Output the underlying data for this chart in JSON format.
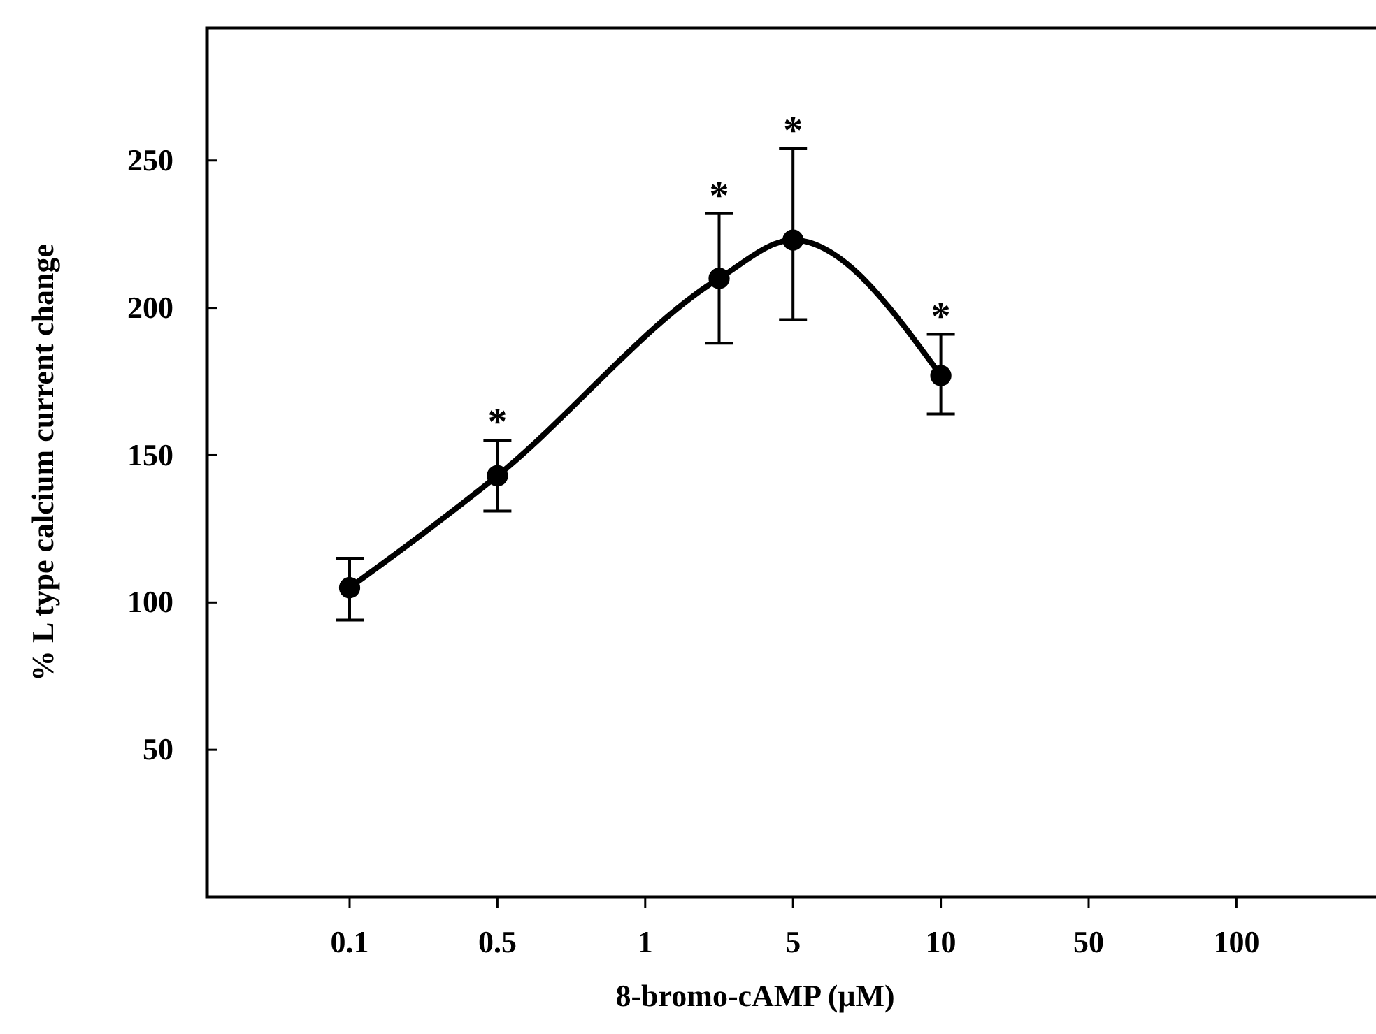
{
  "chart_data": {
    "type": "line",
    "xlabel": "8-bromo-cAMP (μM)",
    "ylabel": "% L type calcium current change",
    "categories": [
      "0.1",
      null,
      "0.5",
      null,
      "1",
      null,
      "5",
      null,
      "10",
      null,
      "50",
      null,
      "100"
    ],
    "ylim": [
      0,
      295
    ],
    "yticks": [
      50,
      100,
      150,
      200,
      250
    ],
    "series": [
      {
        "color": "#000000",
        "values": [
          105,
          null,
          143,
          null,
          null,
          210,
          223,
          null,
          177,
          null,
          null,
          null,
          null
        ],
        "errors": [
          [
            94,
            115
          ],
          null,
          [
            131,
            155
          ],
          null,
          null,
          [
            188,
            232
          ],
          [
            196,
            254
          ],
          null,
          [
            164,
            191
          ],
          null,
          null,
          null,
          null
        ]
      }
    ],
    "marker": "circle",
    "line_style": "solid",
    "grid": false,
    "annotations": [
      "*",
      "*",
      "*",
      "*"
    ]
  }
}
